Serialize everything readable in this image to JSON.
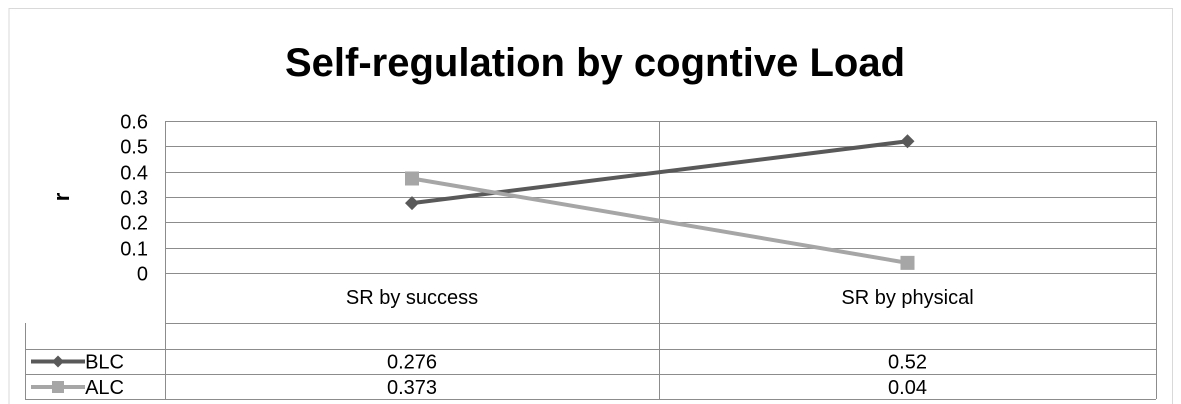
{
  "chart_data": {
    "type": "line",
    "title": "Self-regulation by cogntive Load",
    "xlabel": "",
    "ylabel": "r",
    "categories": [
      "SR by success",
      "SR by physical"
    ],
    "ylim": [
      0,
      0.6
    ],
    "yticks": [
      "0",
      "0.1",
      "0.2",
      "0.3",
      "0.4",
      "0.5",
      "0.6"
    ],
    "grid": true,
    "legend": "data table below plot",
    "series": [
      {
        "name": "BLC",
        "values": [
          0.276,
          0.52
        ],
        "display": [
          "0.276",
          "0.52"
        ],
        "color": "#595959",
        "marker": "diamond"
      },
      {
        "name": "ALC",
        "values": [
          0.373,
          0.04
        ],
        "display": [
          "0.373",
          "0.04"
        ],
        "color": "#a6a6a6",
        "marker": "square"
      }
    ]
  }
}
